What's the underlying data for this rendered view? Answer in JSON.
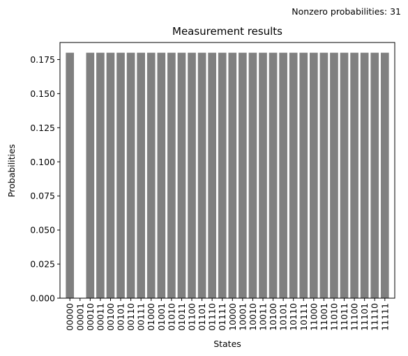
{
  "annotation": "Nonzero probabilities: 31",
  "chart_data": {
    "type": "bar",
    "title": "Measurement results",
    "xlabel": "States",
    "ylabel": "Probabilities",
    "ylim": [
      0,
      0.1875
    ],
    "yticks": [
      "0.000",
      "0.025",
      "0.050",
      "0.075",
      "0.100",
      "0.125",
      "0.150",
      "0.175"
    ],
    "bar_color": "#808080",
    "grid": false,
    "categories": [
      "00000",
      "00001",
      "00010",
      "00011",
      "00100",
      "00101",
      "00110",
      "00111",
      "01000",
      "01001",
      "01010",
      "01011",
      "01100",
      "01101",
      "01110",
      "01111",
      "10000",
      "10001",
      "10010",
      "10011",
      "10100",
      "10101",
      "10110",
      "10111",
      "11000",
      "11001",
      "11010",
      "11011",
      "11100",
      "11101",
      "11110",
      "11111"
    ],
    "values": [
      0.18,
      0,
      0.18,
      0.18,
      0.18,
      0.18,
      0.18,
      0.18,
      0.18,
      0.18,
      0.18,
      0.18,
      0.18,
      0.18,
      0.18,
      0.18,
      0.18,
      0.18,
      0.18,
      0.18,
      0.18,
      0.18,
      0.18,
      0.18,
      0.18,
      0.18,
      0.18,
      0.18,
      0.18,
      0.18,
      0.18,
      0.18
    ]
  }
}
